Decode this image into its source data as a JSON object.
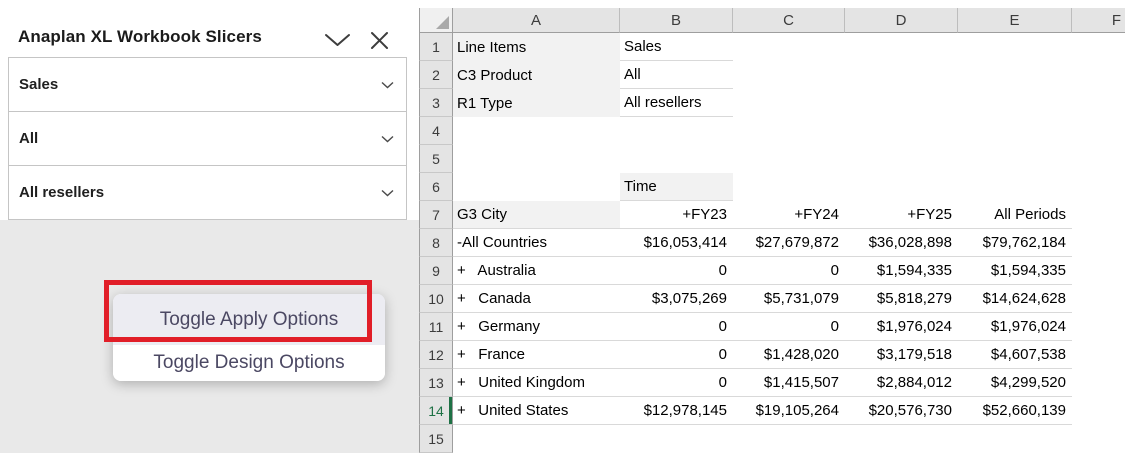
{
  "panel": {
    "title": "Anaplan XL Workbook Slicers",
    "slicers": [
      {
        "value": "Sales"
      },
      {
        "value": "All"
      },
      {
        "value": "All resellers"
      }
    ]
  },
  "menu": {
    "items": [
      {
        "label": "Toggle Apply Options",
        "highlighted": true
      },
      {
        "label": "Toggle Design Options",
        "highlighted": false
      }
    ]
  },
  "annotation": {
    "shape": "rectangle",
    "color": "#e11e28",
    "target": "Toggle Apply Options"
  },
  "spreadsheet": {
    "column_headers": [
      "A",
      "B",
      "C",
      "D",
      "E",
      "F"
    ],
    "row_numbers": [
      1,
      2,
      3,
      4,
      5,
      6,
      7,
      8,
      9,
      10,
      11,
      12,
      13,
      14,
      15
    ],
    "active_row": 14,
    "info_rows": [
      {
        "label": "Line Items",
        "value": "Sales"
      },
      {
        "label": "C3 Product",
        "value": "All"
      },
      {
        "label": "R1 Type",
        "value": "All resellers"
      }
    ],
    "time_label": "Time",
    "table": {
      "header": [
        "G3 City",
        "+FY23",
        "+FY24",
        "+FY25",
        "All Periods"
      ],
      "rows": [
        [
          "-All Countries",
          "$16,053,414",
          "$27,679,872",
          "$36,028,898",
          "$79,762,184"
        ],
        [
          "+   Australia",
          "0",
          "0",
          "$1,594,335",
          "$1,594,335"
        ],
        [
          "+   Canada",
          "$3,075,269",
          "$5,731,079",
          "$5,818,279",
          "$14,624,628"
        ],
        [
          "+   Germany",
          "0",
          "0",
          "$1,976,024",
          "$1,976,024"
        ],
        [
          "+   France",
          "0",
          "$1,428,020",
          "$3,179,518",
          "$4,607,538"
        ],
        [
          "+   United Kingdom",
          "0",
          "$1,415,507",
          "$2,884,012",
          "$4,299,520"
        ],
        [
          "+   United States",
          "$12,978,145",
          "$19,105,264",
          "$20,576,730",
          "$52,660,139"
        ]
      ]
    },
    "colors": {
      "active_row_green": "#1e7145"
    }
  }
}
